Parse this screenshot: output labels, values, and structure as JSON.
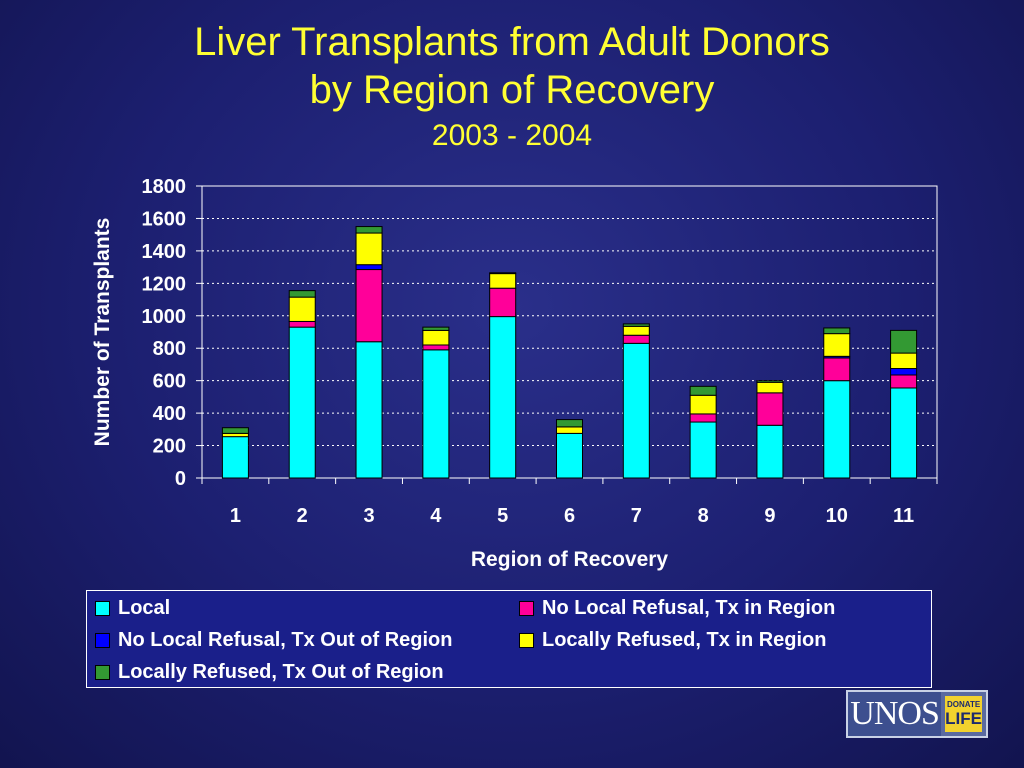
{
  "title": {
    "line1": "Liver Transplants from Adult Donors",
    "line2": "by Region of Recovery",
    "subtitle": "2003 - 2004"
  },
  "chart_data": {
    "type": "bar",
    "stacked": true,
    "categories": [
      "1",
      "2",
      "3",
      "4",
      "5",
      "6",
      "7",
      "8",
      "9",
      "10",
      "11"
    ],
    "xlabel": "Region of Recovery",
    "ylabel": "Number of Transplants",
    "ylim": [
      0,
      1800
    ],
    "yticks": [
      "0",
      "200",
      "400",
      "600",
      "800",
      "1000",
      "1200",
      "1400",
      "1600",
      "1800"
    ],
    "grid": "horizontal dotted",
    "legend_position": "bottom",
    "series": [
      {
        "name": "Local",
        "color": "#00ffff",
        "values": [
          255,
          930,
          840,
          790,
          995,
          275,
          830,
          345,
          325,
          600,
          555
        ]
      },
      {
        "name": "No Local Refusal, Tx in Region",
        "color": "#ff0099",
        "values": [
          0,
          35,
          445,
          30,
          175,
          0,
          50,
          50,
          200,
          140,
          80
        ]
      },
      {
        "name": "No Local Refusal, Tx Out of Region",
        "color": "#0000ff",
        "values": [
          0,
          0,
          30,
          0,
          0,
          0,
          0,
          0,
          0,
          10,
          40
        ]
      },
      {
        "name": "Locally Refused, Tx in Region",
        "color": "#ffff00",
        "values": [
          20,
          150,
          195,
          90,
          90,
          40,
          55,
          115,
          65,
          140,
          95
        ]
      },
      {
        "name": "Locally Refused, Tx Out of Region",
        "color": "#339933",
        "values": [
          35,
          40,
          40,
          20,
          5,
          45,
          15,
          55,
          10,
          35,
          140
        ]
      }
    ]
  },
  "legend": [
    "Local",
    "No Local Refusal, Tx in Region",
    "No Local Refusal, Tx Out of Region",
    "Locally Refused, Tx in Region",
    "Locally Refused, Tx Out of Region"
  ],
  "logo": {
    "main": "UNOS",
    "side_top": "DONATE",
    "side_bottom": "LIFE"
  }
}
